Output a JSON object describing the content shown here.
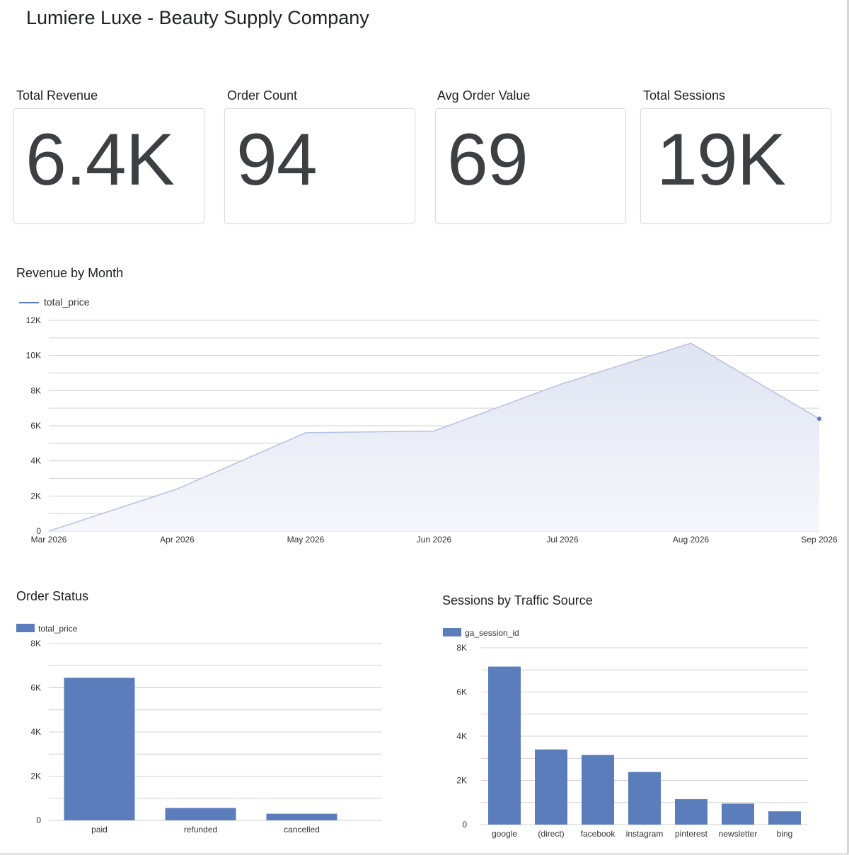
{
  "page": {
    "title": "Lumiere Luxe - Beauty Supply Company"
  },
  "kpis": [
    {
      "label": "Total Revenue",
      "value": "6.4K"
    },
    {
      "label": "Order Count",
      "value": "94"
    },
    {
      "label": "Avg Order Value",
      "value": "69"
    },
    {
      "label": "Total Sessions",
      "value": "19K"
    }
  ],
  "colors": {
    "bar": "#5b7dbc",
    "area_line": "#b6c1e1",
    "area_fill": "#dfe4f2",
    "grid": "#d0d0d0",
    "text": "#202124"
  },
  "chart_data": [
    {
      "type": "area",
      "title": "Revenue by Month",
      "legend": {
        "position": "top-left",
        "entries": [
          "total_price"
        ]
      },
      "x": [
        "Mar 2026",
        "Apr 2026",
        "May 2026",
        "Jun 2026",
        "Jul 2026",
        "Aug 2026",
        "Sep 2026"
      ],
      "series": [
        {
          "name": "total_price",
          "values": [
            0,
            2400,
            5600,
            5700,
            8400,
            10700,
            6400
          ]
        }
      ],
      "ylim": [
        0,
        12000
      ],
      "yticks": [
        0,
        2000,
        4000,
        6000,
        8000,
        10000,
        12000
      ],
      "ytick_labels": [
        "0",
        "2K",
        "4K",
        "6K",
        "8K",
        "10K",
        "12K"
      ],
      "grid": true
    },
    {
      "type": "bar",
      "title": "Order Status",
      "legend": {
        "position": "top-left",
        "entries": [
          "total_price"
        ]
      },
      "categories": [
        "paid",
        "refunded",
        "cancelled"
      ],
      "series": [
        {
          "name": "total_price",
          "values": [
            6450,
            560,
            300
          ]
        }
      ],
      "ylim": [
        0,
        8000
      ],
      "yticks": [
        0,
        2000,
        4000,
        6000,
        8000
      ],
      "ytick_labels": [
        "0",
        "2K",
        "4K",
        "6K",
        "8K"
      ],
      "grid": true
    },
    {
      "type": "bar",
      "title": "Sessions by Traffic Source",
      "legend": {
        "position": "top-left",
        "entries": [
          "ga_session_id"
        ]
      },
      "categories": [
        "google",
        "(direct)",
        "facebook",
        "instagram",
        "pinterest",
        "newsletter",
        "bing"
      ],
      "series": [
        {
          "name": "ga_session_id",
          "values": [
            7150,
            3400,
            3150,
            2380,
            1150,
            950,
            600
          ]
        }
      ],
      "ylim": [
        0,
        8000
      ],
      "yticks": [
        0,
        2000,
        4000,
        6000,
        8000
      ],
      "ytick_labels": [
        "0",
        "2K",
        "4K",
        "6K",
        "8K"
      ],
      "grid": true
    }
  ]
}
